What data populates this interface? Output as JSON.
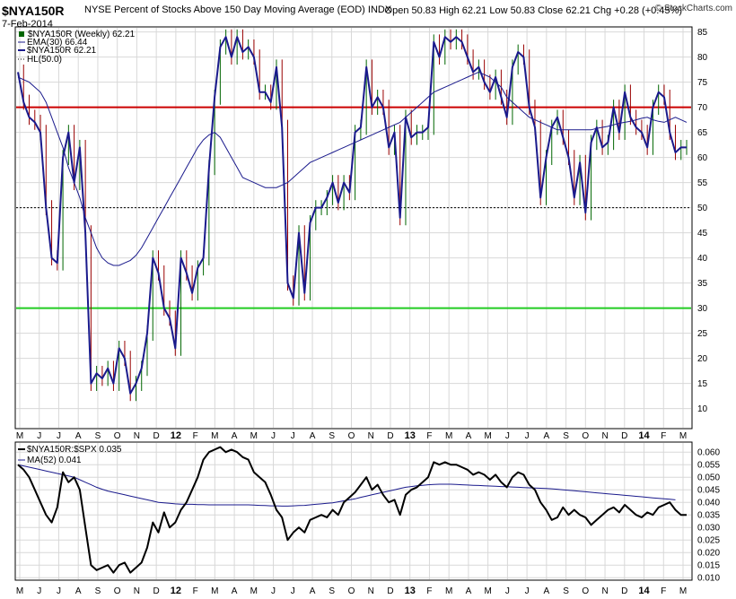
{
  "header": {
    "symbol": "$NYA150R",
    "description": "NYSE Percent of Stocks Above 150 Day Moving Average (EOD)  INDX",
    "date": "7-Feb-2014",
    "ohlc": "Open 50.83   High 62.21   Low 50.83   Close 62.21   Chg +0.28 (+0.45%)",
    "brand": "© StockCharts.com"
  },
  "colors": {
    "price": "#1a1a8c",
    "ema": "#1a1a8c",
    "upper_line": "#cc0000",
    "lower_line": "#22cc22",
    "up_bar": "#006600",
    "down_bar": "#990000",
    "ratio": "#000000",
    "ma52": "#1a1a8c",
    "grid": "#d8d8d8"
  },
  "x_axis": {
    "months": [
      "M",
      "J",
      "J",
      "A",
      "S",
      "O",
      "N",
      "D",
      "12",
      "F",
      "M",
      "A",
      "M",
      "J",
      "J",
      "A",
      "S",
      "O",
      "N",
      "D",
      "13",
      "F",
      "M",
      "A",
      "M",
      "J",
      "J",
      "A",
      "S",
      "O",
      "N",
      "D",
      "14",
      "F",
      "M"
    ],
    "year_labels": [
      "12",
      "13",
      "14"
    ]
  },
  "chart_data": [
    {
      "type": "line",
      "panel": "main",
      "legend": [
        "$NYA150R (Weekly) 62.21",
        "EMA(30) 66.44",
        "$NYA150R 62.21",
        "HL(50.0)"
      ],
      "ylim": [
        6,
        86
      ],
      "yticks": [
        10,
        15,
        20,
        25,
        30,
        35,
        40,
        45,
        50,
        55,
        60,
        65,
        70,
        75,
        80,
        85
      ],
      "hlines": [
        {
          "value": 70,
          "color": "#cc0000"
        },
        {
          "value": 30,
          "color": "#22cc22"
        },
        {
          "value": 50,
          "color": "#000000",
          "style": "dotted"
        }
      ],
      "series": [
        {
          "values": [
            77,
            71,
            68,
            67,
            65,
            50,
            40,
            39,
            60,
            65,
            55,
            62,
            45,
            15,
            17,
            16,
            18,
            15,
            22,
            20,
            13,
            15,
            18,
            25,
            40,
            37,
            30,
            28,
            22,
            40,
            37,
            33,
            38,
            40,
            58,
            72,
            82,
            84,
            80,
            84,
            81,
            82,
            80,
            73,
            73,
            71,
            78,
            66,
            35,
            32,
            45,
            33,
            47,
            50,
            50,
            52,
            55,
            51,
            55,
            53,
            65,
            66,
            78,
            70,
            72,
            70,
            62,
            65,
            48,
            68,
            64,
            65,
            65,
            66,
            83,
            80,
            84,
            83,
            84,
            83,
            80,
            77,
            78,
            75,
            73,
            76,
            72,
            68,
            78,
            81,
            80,
            70,
            66,
            52,
            60,
            66,
            68,
            64,
            60,
            52,
            59,
            49,
            63,
            66,
            62,
            63,
            70,
            65,
            73,
            68,
            66,
            65,
            62,
            70,
            73,
            72,
            65,
            61,
            62,
            62
          ]
        },
        {
          "values": [
            76,
            75.5,
            75,
            74,
            73,
            71,
            68,
            65,
            62,
            58,
            55,
            52,
            48,
            45,
            42,
            40,
            39,
            38.5,
            38.5,
            39,
            39.5,
            40.5,
            42,
            44,
            46,
            48,
            50,
            52,
            54,
            56,
            58,
            60,
            62,
            63.5,
            64.5,
            65,
            64,
            62,
            60,
            58,
            56,
            55.5,
            55,
            54.5,
            54,
            54,
            54,
            54.5,
            55,
            56,
            57,
            58,
            59,
            59.5,
            60,
            60.5,
            61,
            61.5,
            62,
            62.5,
            63,
            63.5,
            64,
            64.5,
            65,
            65.5,
            66,
            66.5,
            67,
            68,
            69,
            70,
            71,
            72,
            73,
            73.5,
            74,
            74.5,
            75,
            75.5,
            76,
            76.5,
            77,
            76.5,
            76,
            75,
            74,
            72,
            71,
            70,
            69,
            68,
            67.5,
            67,
            66.5,
            66,
            65.5,
            65.5,
            65.5,
            65.5,
            65.5,
            65.5,
            65.5,
            65.8,
            66,
            66.2,
            66.5,
            66.8,
            67,
            67.2,
            67.5,
            67.8,
            68,
            67.5,
            67.2,
            67,
            67.5,
            68,
            67.5,
            67
          ]
        }
      ]
    },
    {
      "type": "line",
      "panel": "lower",
      "legend": [
        "$NYA150R:$SPX 0.035",
        "MA(52) 0.041"
      ],
      "ylim": [
        0.009,
        0.064
      ],
      "yticks": [
        0.01,
        0.015,
        0.02,
        0.025,
        0.03,
        0.035,
        0.04,
        0.045,
        0.05,
        0.055,
        0.06
      ],
      "series": [
        {
          "values": [
            0.055,
            0.053,
            0.05,
            0.045,
            0.04,
            0.035,
            0.032,
            0.038,
            0.052,
            0.048,
            0.05,
            0.045,
            0.03,
            0.015,
            0.013,
            0.014,
            0.015,
            0.012,
            0.015,
            0.016,
            0.012,
            0.014,
            0.016,
            0.022,
            0.032,
            0.028,
            0.036,
            0.03,
            0.032,
            0.037,
            0.04,
            0.045,
            0.05,
            0.057,
            0.06,
            0.061,
            0.062,
            0.06,
            0.061,
            0.06,
            0.058,
            0.057,
            0.052,
            0.05,
            0.048,
            0.043,
            0.037,
            0.034,
            0.025,
            0.028,
            0.03,
            0.028,
            0.033,
            0.034,
            0.035,
            0.034,
            0.037,
            0.035,
            0.04,
            0.042,
            0.044,
            0.047,
            0.05,
            0.045,
            0.047,
            0.043,
            0.04,
            0.041,
            0.035,
            0.043,
            0.045,
            0.046,
            0.048,
            0.05,
            0.056,
            0.055,
            0.056,
            0.055,
            0.055,
            0.054,
            0.053,
            0.051,
            0.052,
            0.051,
            0.049,
            0.051,
            0.048,
            0.046,
            0.05,
            0.052,
            0.051,
            0.047,
            0.045,
            0.04,
            0.037,
            0.033,
            0.034,
            0.038,
            0.035,
            0.037,
            0.035,
            0.034,
            0.031,
            0.033,
            0.035,
            0.037,
            0.038,
            0.036,
            0.039,
            0.037,
            0.035,
            0.034,
            0.036,
            0.035,
            0.038,
            0.039,
            0.04,
            0.037,
            0.035,
            0.035
          ]
        },
        {
          "values": [
            0.055,
            0.0545,
            0.054,
            0.0535,
            0.053,
            0.0525,
            0.052,
            0.0515,
            0.051,
            0.0505,
            0.05,
            0.049,
            0.048,
            0.047,
            0.046,
            0.0452,
            0.0445,
            0.044,
            0.0435,
            0.043,
            0.0425,
            0.042,
            0.0415,
            0.041,
            0.0405,
            0.04,
            0.0398,
            0.0396,
            0.0394,
            0.0393,
            0.0392,
            0.0392,
            0.0391,
            0.0391,
            0.039,
            0.039,
            0.039,
            0.039,
            0.039,
            0.039,
            0.039,
            0.039,
            0.0389,
            0.0388,
            0.0387,
            0.0386,
            0.0386,
            0.0385,
            0.0385,
            0.0386,
            0.0387,
            0.0388,
            0.039,
            0.0392,
            0.0394,
            0.0396,
            0.0398,
            0.0402,
            0.0406,
            0.041,
            0.0414,
            0.042,
            0.0425,
            0.043,
            0.0435,
            0.044,
            0.0445,
            0.045,
            0.0455,
            0.046,
            0.0463,
            0.0466,
            0.0468,
            0.047,
            0.0471,
            0.0472,
            0.0472,
            0.0472,
            0.0471,
            0.047,
            0.0469,
            0.0468,
            0.0467,
            0.0466,
            0.0465,
            0.0464,
            0.0463,
            0.0462,
            0.0461,
            0.046,
            0.0459,
            0.0458,
            0.0457,
            0.0456,
            0.0455,
            0.0454,
            0.0452,
            0.045,
            0.0448,
            0.0446,
            0.0444,
            0.0442,
            0.044,
            0.0438,
            0.0436,
            0.0434,
            0.0432,
            0.043,
            0.0428,
            0.0426,
            0.0424,
            0.0422,
            0.042,
            0.0418,
            0.0416,
            0.0414,
            0.0412,
            0.041
          ]
        }
      ]
    }
  ]
}
